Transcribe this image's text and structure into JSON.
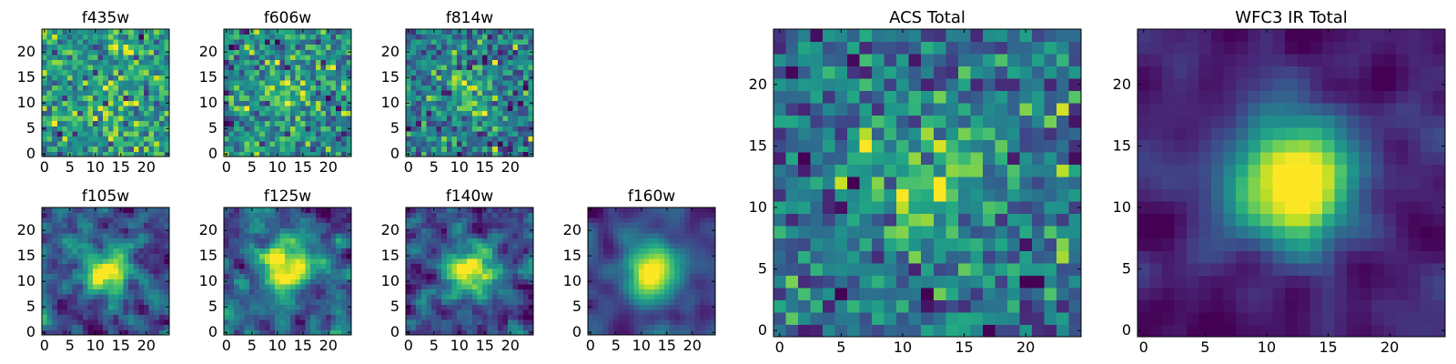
{
  "figure": {
    "title": "",
    "colormap": "viridis",
    "background": "#ffffff"
  },
  "chart_data": [
    {
      "type": "heatmap",
      "title": "f435w",
      "x_ticks": [
        "0",
        "5",
        "10",
        "15",
        "20"
      ],
      "y_ticks": [
        "0",
        "5",
        "10",
        "15",
        "20"
      ],
      "xlim": [
        0,
        25
      ],
      "ylim": [
        0,
        25
      ],
      "grid_size": 25,
      "source_seed": 11,
      "center_peak": 0.1,
      "noise": 1.0,
      "smooth": 0
    },
    {
      "type": "heatmap",
      "title": "f606w",
      "x_ticks": [
        "0",
        "5",
        "10",
        "15",
        "20"
      ],
      "y_ticks": [
        "0",
        "5",
        "10",
        "15",
        "20"
      ],
      "xlim": [
        0,
        25
      ],
      "ylim": [
        0,
        25
      ],
      "grid_size": 25,
      "source_seed": 23,
      "center_peak": 0.25,
      "noise": 1.0,
      "smooth": 0
    },
    {
      "type": "heatmap",
      "title": "f814w",
      "x_ticks": [
        "0",
        "5",
        "10",
        "15",
        "20"
      ],
      "y_ticks": [
        "0",
        "5",
        "10",
        "15",
        "20"
      ],
      "xlim": [
        0,
        25
      ],
      "ylim": [
        0,
        25
      ],
      "grid_size": 25,
      "source_seed": 37,
      "center_peak": 0.45,
      "noise": 1.0,
      "smooth": 0
    },
    {
      "type": "heatmap",
      "title": "f105w",
      "x_ticks": [
        "0",
        "5",
        "10",
        "15",
        "20"
      ],
      "y_ticks": [
        "0",
        "5",
        "10",
        "15",
        "20"
      ],
      "xlim": [
        0,
        25
      ],
      "ylim": [
        0,
        25
      ],
      "grid_size": 25,
      "source_seed": 41,
      "center_peak": 0.55,
      "noise": 0.8,
      "smooth": 1
    },
    {
      "type": "heatmap",
      "title": "f125w",
      "x_ticks": [
        "0",
        "5",
        "10",
        "15",
        "20"
      ],
      "y_ticks": [
        "0",
        "5",
        "10",
        "15",
        "20"
      ],
      "xlim": [
        0,
        25
      ],
      "ylim": [
        0,
        25
      ],
      "grid_size": 25,
      "source_seed": 53,
      "center_peak": 0.6,
      "noise": 0.8,
      "smooth": 1
    },
    {
      "type": "heatmap",
      "title": "f140w",
      "x_ticks": [
        "0",
        "5",
        "10",
        "15",
        "20"
      ],
      "y_ticks": [
        "0",
        "5",
        "10",
        "15",
        "20"
      ],
      "xlim": [
        0,
        25
      ],
      "ylim": [
        0,
        25
      ],
      "grid_size": 25,
      "source_seed": 67,
      "center_peak": 0.6,
      "noise": 0.8,
      "smooth": 1
    },
    {
      "type": "heatmap",
      "title": "f160w",
      "x_ticks": [
        "0",
        "5",
        "10",
        "15",
        "20"
      ],
      "y_ticks": [
        "0",
        "5",
        "10",
        "15",
        "20"
      ],
      "xlim": [
        0,
        25
      ],
      "ylim": [
        0,
        25
      ],
      "grid_size": 25,
      "source_seed": 79,
      "center_peak": 0.75,
      "noise": 0.6,
      "smooth": 2
    },
    {
      "type": "heatmap",
      "title": "ACS Total",
      "x_ticks": [
        "0",
        "5",
        "10",
        "15",
        "20"
      ],
      "y_ticks": [
        "0",
        "5",
        "10",
        "15",
        "20"
      ],
      "xlim": [
        0,
        25
      ],
      "ylim": [
        0,
        25
      ],
      "grid_size": 25,
      "source_seed": 97,
      "center_peak": 0.5,
      "noise": 0.7,
      "smooth": 0
    },
    {
      "type": "heatmap",
      "title": "WFC3 IR Total",
      "x_ticks": [
        "0",
        "5",
        "10",
        "15",
        "20"
      ],
      "y_ticks": [
        "0",
        "5",
        "10",
        "15",
        "20"
      ],
      "xlim": [
        0,
        25
      ],
      "ylim": [
        0,
        25
      ],
      "grid_size": 25,
      "source_seed": 113,
      "center_peak": 0.75,
      "noise": 0.5,
      "smooth": 2
    }
  ]
}
